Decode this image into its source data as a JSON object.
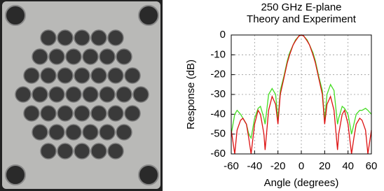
{
  "chart_data": {
    "type": "line",
    "title": "250 GHz E-plane",
    "subtitle": "Theory and Experiment",
    "x_label": "Angle (degrees)",
    "y_label": "Response (dB)",
    "x": [
      -60,
      -57,
      -55,
      -52,
      -50,
      -47,
      -45,
      -43,
      -40,
      -37,
      -35,
      -32,
      -31,
      -28,
      -25,
      -22,
      -20,
      -18,
      -15,
      -12,
      -10,
      -7,
      -5,
      -2,
      0,
      2,
      5,
      7,
      10,
      12,
      15,
      18,
      20,
      22,
      25,
      28,
      31,
      32,
      35,
      37,
      40,
      43,
      45,
      47,
      50,
      52,
      55,
      57,
      60
    ],
    "series": [
      {
        "color": "#44dd22",
        "values": [
          -50,
          -40,
          -38,
          -40,
          -42,
          -45,
          -50,
          -52,
          -42,
          -37,
          -36,
          -42,
          -45,
          -30,
          -27,
          -30,
          -43,
          -28,
          -21,
          -13,
          -9,
          -5,
          -2.5,
          -0.5,
          0,
          -0.5,
          -2.5,
          -5,
          -9,
          -13,
          -21,
          -28,
          -43,
          -30,
          -25,
          -28,
          -45,
          -42,
          -36,
          -37,
          -40,
          -50,
          -45,
          -40,
          -38,
          -38,
          -37,
          -38,
          -40
        ]
      },
      {
        "color": "#dd1111",
        "values": [
          -48,
          -60,
          -48,
          -43,
          -42,
          -45,
          -52,
          -60,
          -45,
          -38,
          -40,
          -50,
          -58,
          -38,
          -31,
          -35,
          -45,
          -30,
          -22,
          -14,
          -10,
          -5,
          -3,
          -0.5,
          0,
          -0.5,
          -3,
          -5,
          -10,
          -14,
          -22,
          -30,
          -45,
          -35,
          -31,
          -38,
          -58,
          -50,
          -40,
          -38,
          -45,
          -60,
          -52,
          -45,
          -42,
          -43,
          -48,
          -60,
          -48
        ]
      }
    ],
    "xlim": [
      -60,
      60
    ],
    "ylim": [
      -60,
      0
    ],
    "xticks": [
      -60,
      -40,
      -20,
      0,
      20,
      40,
      60
    ],
    "yticks": [
      0,
      -10,
      -20,
      -30,
      -40,
      -50,
      -60
    ],
    "grid": true
  }
}
